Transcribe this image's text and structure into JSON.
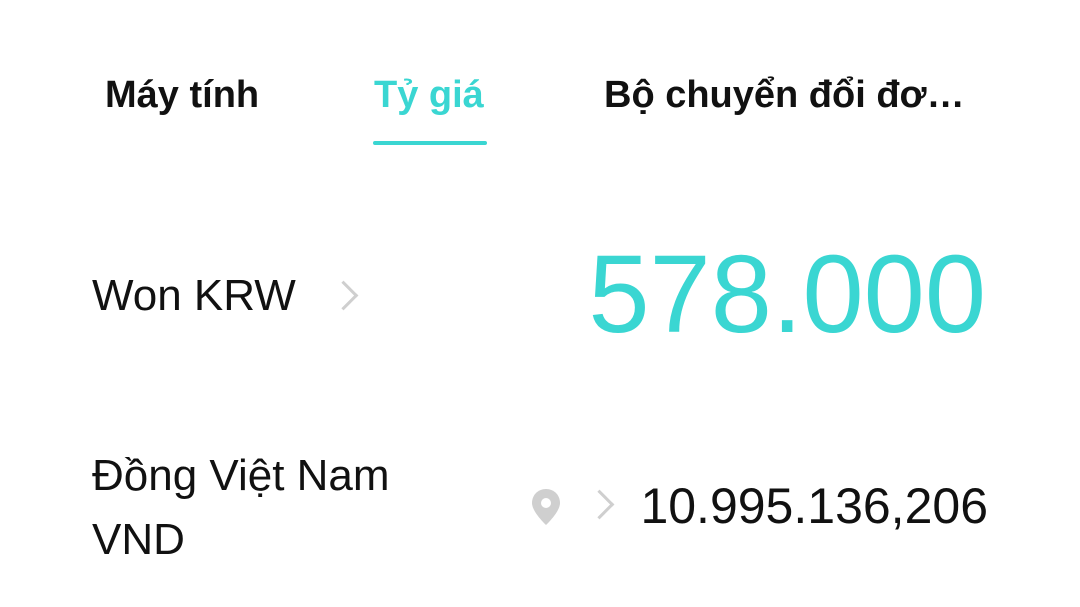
{
  "tabs": [
    {
      "label": "Máy tính",
      "active": false
    },
    {
      "label": "Tỷ giá",
      "active": true
    },
    {
      "label": "Bộ chuyển đổi đơ…",
      "active": false
    }
  ],
  "accent_color": "#3ad6d2",
  "rows": [
    {
      "currency": "Won KRW",
      "amount": "578.000",
      "icons": [
        "chevron-right-icon"
      ]
    },
    {
      "currency": "Đồng Việt Nam\nVND",
      "amount": "10.995.136,206",
      "icons": [
        "location-pin-icon",
        "chevron-right-icon"
      ]
    }
  ]
}
